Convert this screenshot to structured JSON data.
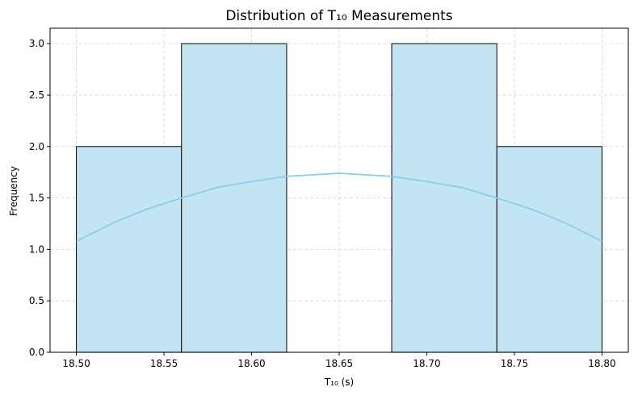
{
  "chart_data": {
    "type": "bar",
    "subtype": "histogram",
    "title": "Distribution of T₁₀ Measurements",
    "xlabel": "T₁₀ (s)",
    "ylabel": "Frequency",
    "xlim": [
      18.485,
      18.815
    ],
    "ylim": [
      0,
      3.15
    ],
    "xticks": [
      "18.50",
      "18.55",
      "18.60",
      "18.65",
      "18.70",
      "18.75",
      "18.80"
    ],
    "yticks": [
      "0.0",
      "0.5",
      "1.0",
      "1.5",
      "2.0",
      "2.5",
      "3.0"
    ],
    "bins": [
      {
        "x0": 18.5,
        "x1": 18.56,
        "count": 2
      },
      {
        "x0": 18.56,
        "x1": 18.62,
        "count": 3
      },
      {
        "x0": 18.62,
        "x1": 18.68,
        "count": 0
      },
      {
        "x0": 18.68,
        "x1": 18.74,
        "count": 3
      },
      {
        "x0": 18.74,
        "x1": 18.8,
        "count": 2
      }
    ],
    "kde": {
      "x": [
        18.5,
        18.52,
        18.54,
        18.56,
        18.58,
        18.6,
        18.62,
        18.64,
        18.65,
        18.66,
        18.68,
        18.7,
        18.72,
        18.74,
        18.76,
        18.78,
        18.8
      ],
      "y": [
        1.08,
        1.25,
        1.39,
        1.5,
        1.6,
        1.66,
        1.71,
        1.73,
        1.74,
        1.73,
        1.71,
        1.66,
        1.6,
        1.5,
        1.39,
        1.25,
        1.08
      ]
    },
    "grid": true,
    "colors": {
      "bar_fill": "#c3e5f3",
      "bar_edge": "#1a1a1a",
      "kde_line": "#87ceeb"
    }
  }
}
